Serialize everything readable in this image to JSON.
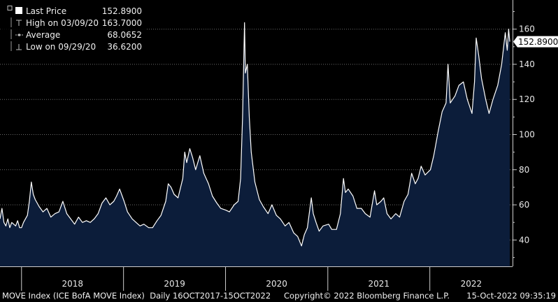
{
  "chart_data": {
    "type": "area",
    "title": "",
    "xlabel": "",
    "ylabel": "",
    "ylim": [
      25,
      175
    ],
    "yticks": [
      40,
      60,
      80,
      100,
      120,
      140,
      160
    ],
    "xticks": [
      "2018",
      "2019",
      "2020",
      "2021",
      "2022"
    ],
    "grid": true,
    "legend_position": "top-left",
    "colors": {
      "background": "#000000",
      "fill": "#0c1d3a",
      "line": "#ffffff",
      "grid": "#6a6a6a",
      "label_bg": "#ffffff"
    },
    "legend": [
      {
        "label": "Last Price",
        "value": "152.8900",
        "icon": "square-swatch-icon"
      },
      {
        "label": "High on 03/09/20",
        "value": "163.7000",
        "icon": "high-marker-icon"
      },
      {
        "label": "Average",
        "value": "68.0652",
        "icon": "average-marker-icon"
      },
      {
        "label": "Low on 09/29/20",
        "value": "36.6200",
        "icon": "low-marker-icon"
      }
    ],
    "last_value_label": "152.8900",
    "series": [
      {
        "points": [
          [
            "2017-10-16",
            52
          ],
          [
            "2017-10-23",
            58
          ],
          [
            "2017-10-30",
            50
          ],
          [
            "2017-11-06",
            48
          ],
          [
            "2017-11-13",
            52
          ],
          [
            "2017-11-20",
            47
          ],
          [
            "2017-11-27",
            50
          ],
          [
            "2017-12-04",
            49
          ],
          [
            "2017-12-11",
            48
          ],
          [
            "2017-12-18",
            51
          ],
          [
            "2017-12-25",
            47
          ],
          [
            "2018-01-01",
            47
          ],
          [
            "2018-01-08",
            50
          ],
          [
            "2018-01-15",
            52
          ],
          [
            "2018-01-22",
            54
          ],
          [
            "2018-01-29",
            62
          ],
          [
            "2018-02-05",
            73
          ],
          [
            "2018-02-12",
            66
          ],
          [
            "2018-02-19",
            63
          ],
          [
            "2018-03-05",
            59
          ],
          [
            "2018-03-19",
            56
          ],
          [
            "2018-04-02",
            58
          ],
          [
            "2018-04-16",
            53
          ],
          [
            "2018-05-01",
            55
          ],
          [
            "2018-05-15",
            56
          ],
          [
            "2018-05-29",
            62
          ],
          [
            "2018-06-12",
            55
          ],
          [
            "2018-06-26",
            52
          ],
          [
            "2018-07-10",
            49
          ],
          [
            "2018-07-24",
            53
          ],
          [
            "2018-08-07",
            50
          ],
          [
            "2018-08-21",
            51
          ],
          [
            "2018-09-04",
            50
          ],
          [
            "2018-09-18",
            52
          ],
          [
            "2018-10-02",
            55
          ],
          [
            "2018-10-16",
            61
          ],
          [
            "2018-10-30",
            64
          ],
          [
            "2018-11-13",
            60
          ],
          [
            "2018-11-27",
            62
          ],
          [
            "2018-12-07",
            65
          ],
          [
            "2018-12-18",
            69
          ],
          [
            "2019-01-03",
            62
          ],
          [
            "2019-01-15",
            56
          ],
          [
            "2019-02-01",
            52
          ],
          [
            "2019-02-15",
            50
          ],
          [
            "2019-03-01",
            48
          ],
          [
            "2019-03-15",
            49
          ],
          [
            "2019-04-01",
            47
          ],
          [
            "2019-04-15",
            47
          ],
          [
            "2019-05-01",
            51
          ],
          [
            "2019-05-15",
            54
          ],
          [
            "2019-06-01",
            62
          ],
          [
            "2019-06-10",
            72
          ],
          [
            "2019-06-20",
            70
          ],
          [
            "2019-07-01",
            66
          ],
          [
            "2019-07-15",
            64
          ],
          [
            "2019-08-01",
            75
          ],
          [
            "2019-08-08",
            90
          ],
          [
            "2019-08-15",
            84
          ],
          [
            "2019-08-26",
            92
          ],
          [
            "2019-09-05",
            87
          ],
          [
            "2019-09-16",
            80
          ],
          [
            "2019-10-01",
            88
          ],
          [
            "2019-10-15",
            78
          ],
          [
            "2019-11-01",
            72
          ],
          [
            "2019-11-15",
            65
          ],
          [
            "2019-12-01",
            61
          ],
          [
            "2019-12-15",
            58
          ],
          [
            "2020-01-02",
            57
          ],
          [
            "2020-01-15",
            56
          ],
          [
            "2020-02-01",
            60
          ],
          [
            "2020-02-15",
            62
          ],
          [
            "2020-02-24",
            75
          ],
          [
            "2020-03-02",
            110
          ],
          [
            "2020-03-09",
            163.7
          ],
          [
            "2020-03-12",
            135
          ],
          [
            "2020-03-19",
            140
          ],
          [
            "2020-03-26",
            110
          ],
          [
            "2020-04-02",
            90
          ],
          [
            "2020-04-15",
            73
          ],
          [
            "2020-05-01",
            63
          ],
          [
            "2020-05-15",
            59
          ],
          [
            "2020-06-01",
            55
          ],
          [
            "2020-06-15",
            60
          ],
          [
            "2020-07-01",
            54
          ],
          [
            "2020-07-15",
            52
          ],
          [
            "2020-08-01",
            48
          ],
          [
            "2020-08-15",
            50
          ],
          [
            "2020-09-01",
            44
          ],
          [
            "2020-09-15",
            42
          ],
          [
            "2020-09-29",
            36.62
          ],
          [
            "2020-10-09",
            43
          ],
          [
            "2020-10-20",
            47
          ],
          [
            "2020-11-03",
            64
          ],
          [
            "2020-11-10",
            55
          ],
          [
            "2020-11-20",
            50
          ],
          [
            "2020-12-01",
            45
          ],
          [
            "2020-12-15",
            48
          ],
          [
            "2021-01-04",
            49
          ],
          [
            "2021-01-15",
            46
          ],
          [
            "2021-02-01",
            46
          ],
          [
            "2021-02-15",
            55
          ],
          [
            "2021-02-26",
            75
          ],
          [
            "2021-03-05",
            67
          ],
          [
            "2021-03-15",
            69
          ],
          [
            "2021-04-01",
            65
          ],
          [
            "2021-04-15",
            58
          ],
          [
            "2021-05-01",
            58
          ],
          [
            "2021-05-15",
            55
          ],
          [
            "2021-06-01",
            53
          ],
          [
            "2021-06-17",
            68
          ],
          [
            "2021-06-25",
            60
          ],
          [
            "2021-07-10",
            62
          ],
          [
            "2021-07-20",
            64
          ],
          [
            "2021-08-01",
            55
          ],
          [
            "2021-08-15",
            52
          ],
          [
            "2021-09-01",
            55
          ],
          [
            "2021-09-15",
            53
          ],
          [
            "2021-10-01",
            62
          ],
          [
            "2021-10-15",
            66
          ],
          [
            "2021-10-28",
            78
          ],
          [
            "2021-11-10",
            72
          ],
          [
            "2021-11-20",
            75
          ],
          [
            "2021-12-01",
            82
          ],
          [
            "2021-12-15",
            77
          ],
          [
            "2022-01-03",
            80
          ],
          [
            "2022-01-15",
            88
          ],
          [
            "2022-01-31",
            102
          ],
          [
            "2022-02-14",
            113
          ],
          [
            "2022-02-28",
            118
          ],
          [
            "2022-03-07",
            140
          ],
          [
            "2022-03-15",
            118
          ],
          [
            "2022-04-01",
            122
          ],
          [
            "2022-04-15",
            128
          ],
          [
            "2022-05-01",
            130
          ],
          [
            "2022-05-15",
            120
          ],
          [
            "2022-06-01",
            112
          ],
          [
            "2022-06-10",
            130
          ],
          [
            "2022-06-16",
            155
          ],
          [
            "2022-06-25",
            145
          ],
          [
            "2022-07-05",
            132
          ],
          [
            "2022-07-20",
            120
          ],
          [
            "2022-08-01",
            112
          ],
          [
            "2022-08-15",
            120
          ],
          [
            "2022-09-01",
            128
          ],
          [
            "2022-09-15",
            140
          ],
          [
            "2022-09-28",
            158
          ],
          [
            "2022-10-05",
            148
          ],
          [
            "2022-10-10",
            160
          ],
          [
            "2022-10-14",
            152.89
          ]
        ]
      }
    ]
  },
  "footer": {
    "left": "MOVE Index (ICE BofA MOVE Index)  Daily 16OCT2017-15OCT2022",
    "center": "Copyright© 2022 Bloomberg Finance L.P.",
    "right": "15-Oct-2022 09:35:19"
  }
}
